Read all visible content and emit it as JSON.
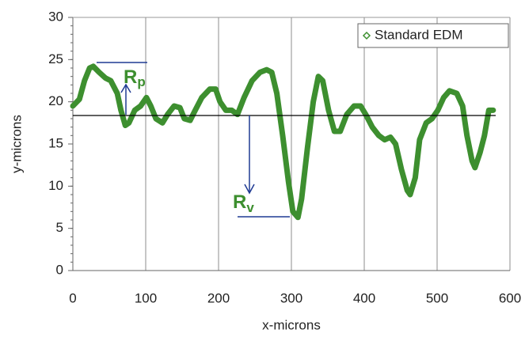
{
  "chart_data": {
    "type": "line",
    "x_label": "x-microns",
    "y_label": "y-microns",
    "annotations": [
      {
        "text": "R",
        "sub": "p"
      },
      {
        "text": "R",
        "sub": "v"
      }
    ],
    "x": [
      0,
      9,
      16,
      23,
      28,
      36,
      45,
      52,
      61,
      66,
      72,
      77,
      85,
      93,
      101,
      107,
      114,
      123,
      130,
      139,
      147,
      153,
      161,
      168,
      177,
      188,
      196,
      202,
      210,
      218,
      226,
      235,
      246,
      257,
      266,
      273,
      280,
      288,
      296,
      302,
      309,
      314,
      322,
      330,
      337,
      343,
      351,
      359,
      367,
      376,
      386,
      395,
      402,
      411,
      420,
      428,
      436,
      443,
      451,
      459,
      463,
      470,
      476,
      485,
      493,
      501,
      509,
      517,
      527,
      535,
      541,
      548,
      552,
      559,
      565,
      571,
      577
    ],
    "series": [
      {
        "name": "Standard EDM",
        "color": "#3d8f2f",
        "values": [
          19.5,
          20.3,
          22.5,
          24,
          24.2,
          23.5,
          22.8,
          22.5,
          21,
          19,
          17.2,
          17.5,
          19,
          19.5,
          20.5,
          19.5,
          18,
          17.5,
          18.5,
          19.5,
          19.3,
          18,
          17.8,
          19,
          20.5,
          21.5,
          21.5,
          20,
          19,
          19,
          18.5,
          20.5,
          22.5,
          23.5,
          23.8,
          23.5,
          21,
          16,
          10.5,
          7,
          6.3,
          8.5,
          14.5,
          20,
          23,
          22.5,
          19,
          16.5,
          16.5,
          18.5,
          19.5,
          19.5,
          18.5,
          17,
          16,
          15.5,
          15.8,
          15,
          12,
          9.5,
          9,
          11,
          15.5,
          17.5,
          18,
          19,
          20.5,
          21.3,
          21,
          19.5,
          16,
          13,
          12.2,
          14,
          16,
          19,
          19
        ]
      }
    ],
    "xlim": [
      0,
      600
    ],
    "xticks": [
      0,
      100,
      200,
      300,
      400,
      500,
      600
    ],
    "ylim": [
      0,
      30
    ],
    "yticks": [
      0,
      5,
      10,
      15,
      20,
      25,
      30
    ],
    "grid": "x",
    "legend": "top-right"
  }
}
